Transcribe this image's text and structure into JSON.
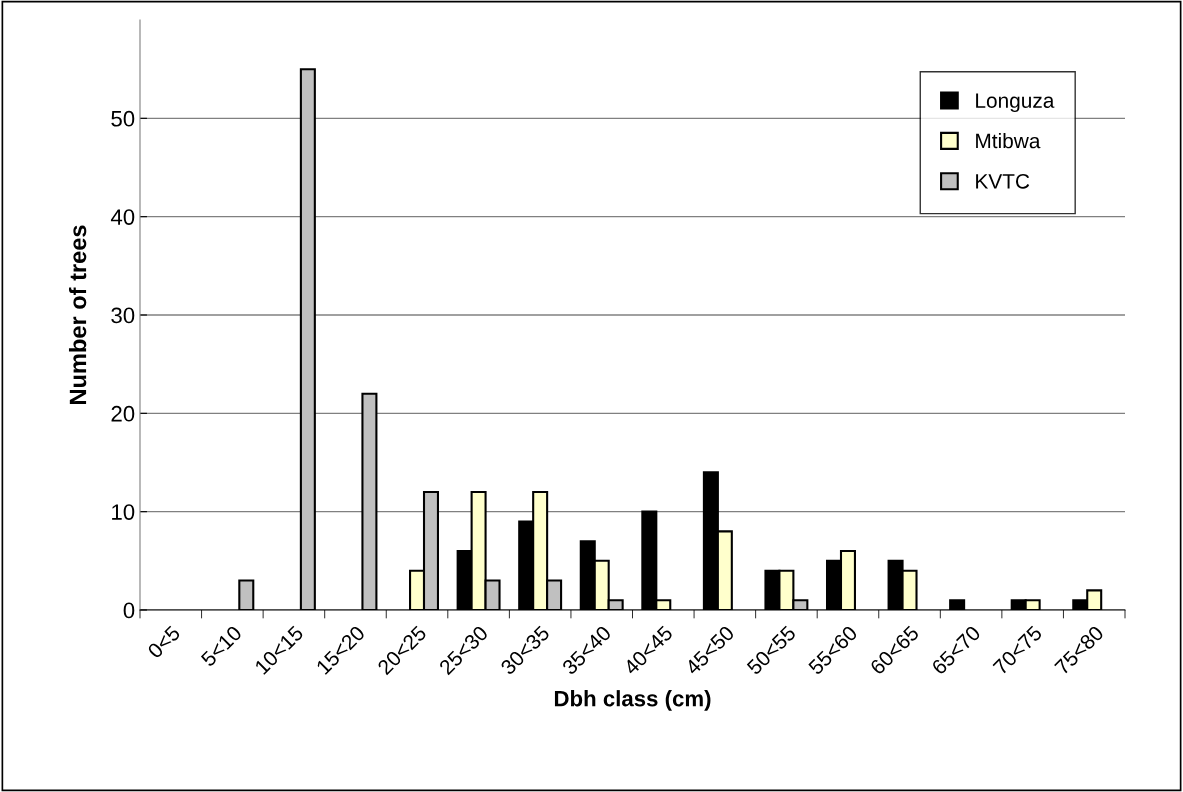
{
  "chart_data": {
    "type": "bar",
    "xlabel": "Dbh class (cm)",
    "ylabel": "Number of trees",
    "categories": [
      "0<5",
      "5<10",
      "10<15",
      "15<20",
      "20<25",
      "25<30",
      "30<35",
      "35<40",
      "40<45",
      "45<50",
      "50<55",
      "55<60",
      "60<65",
      "65<70",
      "70<75",
      "75<80"
    ],
    "series": [
      {
        "name": "Longuza",
        "color": "#000000",
        "values": [
          null,
          null,
          null,
          null,
          null,
          6,
          9,
          7,
          10,
          14,
          4,
          5,
          5,
          1,
          1,
          1
        ]
      },
      {
        "name": "Mtibwa",
        "color": "#ffffcc",
        "values": [
          null,
          null,
          null,
          null,
          4,
          12,
          12,
          5,
          1,
          8,
          4,
          6,
          4,
          null,
          1,
          2
        ]
      },
      {
        "name": "KVTC",
        "color": "#c0c0c0",
        "values": [
          null,
          3,
          55,
          22,
          12,
          3,
          3,
          1,
          null,
          null,
          1,
          null,
          null,
          null,
          null,
          null
        ]
      }
    ],
    "ylim": [
      0,
      60
    ],
    "yticks": [
      0,
      10,
      20,
      30,
      40,
      50
    ],
    "grid": "y",
    "legend": "top right"
  }
}
